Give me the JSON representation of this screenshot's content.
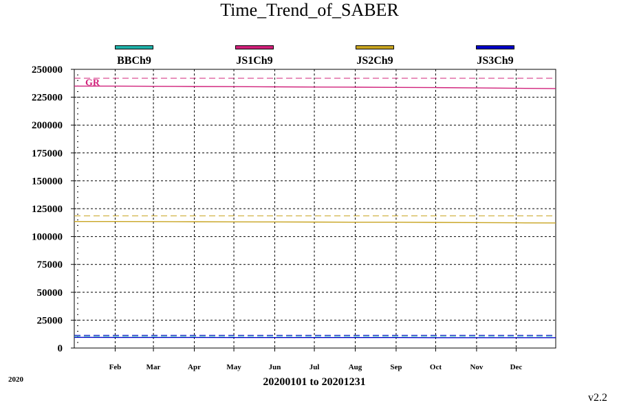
{
  "title": "Time_Trend_of_SABER",
  "year_label": "2020",
  "range_label": "20200101 to 20201231",
  "version": "v2.2",
  "chart_data": {
    "type": "line",
    "title": "Time_Trend_of_SABER",
    "xlabel": "20200101 to 20201231",
    "ylabel": "",
    "x_ticks": [
      "Feb",
      "Mar",
      "Apr",
      "May",
      "Jun",
      "Jul",
      "Aug",
      "Sep",
      "Oct",
      "Nov",
      "Dec"
    ],
    "xlim": [
      "2020-01-01",
      "2020-12-31"
    ],
    "ylim": [
      0,
      250000
    ],
    "y_ticks": [
      0,
      25000,
      50000,
      75000,
      100000,
      125000,
      150000,
      175000,
      200000,
      225000,
      250000
    ],
    "y_tick_labels": [
      "0",
      "25000",
      "50000",
      "75000",
      "100000",
      "125000",
      "150000",
      "175000",
      "200000",
      "225000",
      "250000"
    ],
    "grid": true,
    "legend_position": "top",
    "series": [
      {
        "name": "BBCh9",
        "color": "#20b2aa",
        "x": [],
        "values": []
      },
      {
        "name": "JS1Ch9",
        "color": "#d0207a",
        "x": [
          "2020-01-01",
          "2020-02-01",
          "2020-03-01",
          "2020-04-01",
          "2020-05-01",
          "2020-06-01",
          "2020-07-01",
          "2020-08-01",
          "2020-09-01",
          "2020-10-01",
          "2020-11-01",
          "2020-12-01",
          "2020-12-31"
        ],
        "values": [
          235000,
          235000,
          234800,
          234600,
          234500,
          234300,
          234100,
          234000,
          233800,
          233600,
          233300,
          233000,
          232700
        ]
      },
      {
        "name": "JS2Ch9",
        "color": "#c8a420",
        "x": [
          "2020-01-01",
          "2020-02-01",
          "2020-03-01",
          "2020-04-01",
          "2020-05-01",
          "2020-06-01",
          "2020-07-01",
          "2020-08-01",
          "2020-09-01",
          "2020-10-01",
          "2020-11-01",
          "2020-12-01",
          "2020-12-31"
        ],
        "values": [
          113500,
          113500,
          113400,
          113300,
          113200,
          113100,
          113000,
          112900,
          112900,
          112700,
          112500,
          112300,
          112200
        ]
      },
      {
        "name": "JS3Ch9",
        "color": "#0000c8",
        "x": [
          "2020-01-01",
          "2020-02-01",
          "2020-03-01",
          "2020-04-01",
          "2020-05-01",
          "2020-06-01",
          "2020-07-01",
          "2020-08-01",
          "2020-09-01",
          "2020-10-01",
          "2020-11-01",
          "2020-12-01",
          "2020-12-31"
        ],
        "values": [
          9600,
          9500,
          9500,
          9500,
          9400,
          9400,
          9400,
          9400,
          9400,
          9300,
          9300,
          9300,
          9300
        ]
      }
    ],
    "reference_lines": [
      {
        "series": "JS1Ch9",
        "value": 242000,
        "color": "#d0207a",
        "style": "dashed"
      },
      {
        "series": "JS2Ch9",
        "value": 118500,
        "color": "#c8a420",
        "style": "dashed"
      },
      {
        "series": "JS3Ch9",
        "value": 11500,
        "color": "#0000c8",
        "style": "dashed"
      },
      {
        "series": "BBCh9",
        "value": 10500,
        "color": "#20b2aa",
        "style": "dashed"
      }
    ],
    "annotations": [
      {
        "text": "GR",
        "y": 235000,
        "color": "#d0207a"
      }
    ]
  }
}
